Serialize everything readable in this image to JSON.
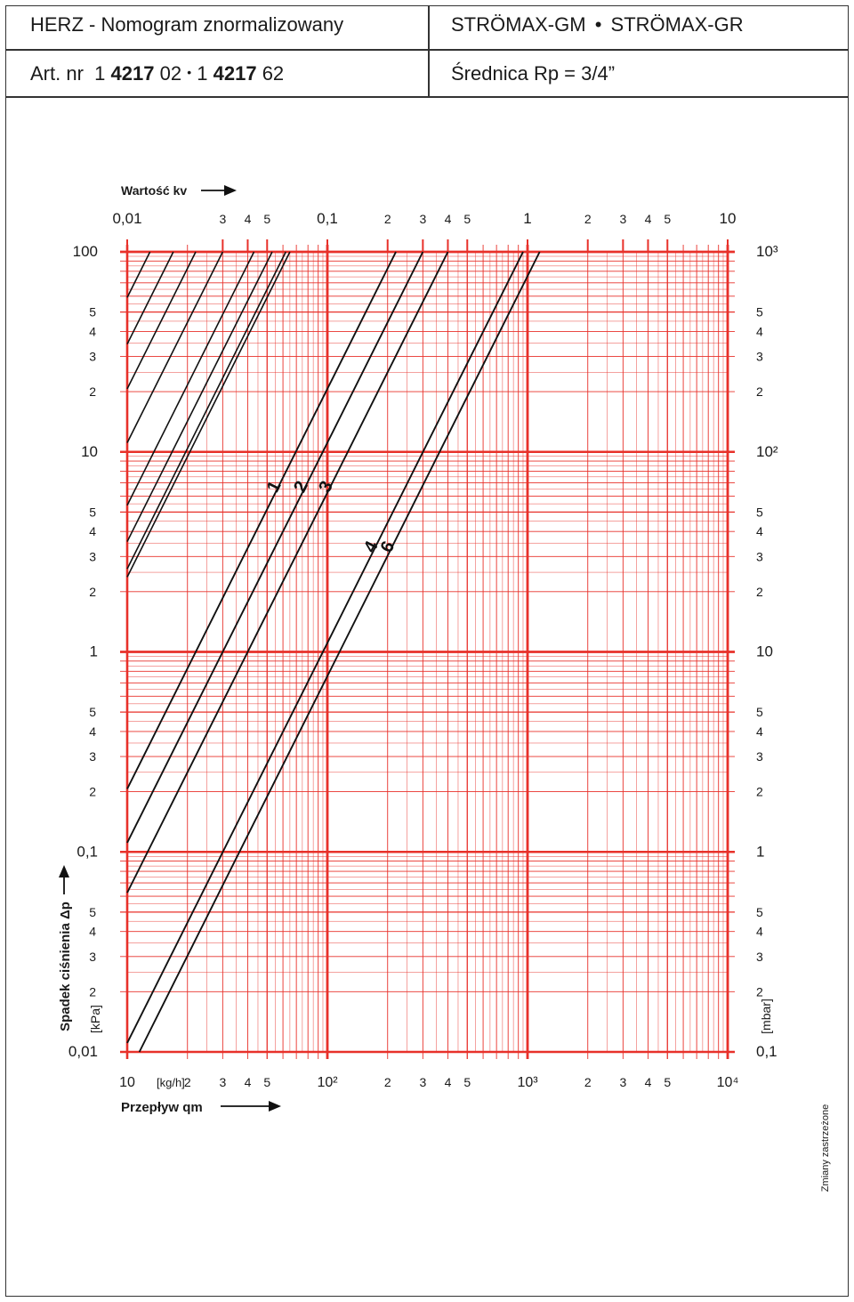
{
  "header": {
    "title": "HERZ - Nomogram znormalizowany",
    "product_left": "STRÖMAX-GM",
    "product_sep": "•",
    "product_right": "STRÖMAX-GR",
    "article_prefix": "Art. nr",
    "article_1a": "1",
    "article_1b": "4217",
    "article_1c": "02",
    "article_sep": "•",
    "article_2a": "1",
    "article_2b": "4217",
    "article_2c": "62",
    "diameter": "Średnica Rp = 3/4”"
  },
  "footer_note": "Zmiany zastrzeżone",
  "colors": {
    "grid": "#e8312a",
    "curve": "#111111",
    "text": "#1a1a1a"
  },
  "chart_data": {
    "type": "line",
    "title": "",
    "xlabel": "Przepływ qm",
    "x_unit": "[kg/h]",
    "ylabel": "Spadek ciśnienia Δp",
    "y_left_unit": "[kPa]",
    "y_right_unit": "[mbar]",
    "top_axis_label": "Wartość kv",
    "x_scale": "log",
    "xlim": [
      10,
      10000
    ],
    "y_scale": "log",
    "ylim": [
      0.01,
      100
    ],
    "kv_scale": "log",
    "kv_lim": [
      0.01,
      10
    ],
    "grid": true,
    "x_tick_labels": [
      {
        "v": 10,
        "t": "10"
      },
      {
        "v": 20,
        "t": "2"
      },
      {
        "v": 30,
        "t": "3"
      },
      {
        "v": 40,
        "t": "4"
      },
      {
        "v": 50,
        "t": "5"
      },
      {
        "v": 100,
        "t": "10²"
      },
      {
        "v": 200,
        "t": "2"
      },
      {
        "v": 300,
        "t": "3"
      },
      {
        "v": 400,
        "t": "4"
      },
      {
        "v": 500,
        "t": "5"
      },
      {
        "v": 1000,
        "t": "10³"
      },
      {
        "v": 2000,
        "t": "2"
      },
      {
        "v": 3000,
        "t": "3"
      },
      {
        "v": 4000,
        "t": "4"
      },
      {
        "v": 5000,
        "t": "5"
      },
      {
        "v": 10000,
        "t": "10⁴"
      }
    ],
    "kv_tick_labels": [
      {
        "v": 0.01,
        "t": "0,01"
      },
      {
        "v": 0.03,
        "t": "3"
      },
      {
        "v": 0.04,
        "t": "4"
      },
      {
        "v": 0.05,
        "t": "5"
      },
      {
        "v": 0.1,
        "t": "0,1"
      },
      {
        "v": 0.2,
        "t": "2"
      },
      {
        "v": 0.3,
        "t": "3"
      },
      {
        "v": 0.4,
        "t": "4"
      },
      {
        "v": 0.5,
        "t": "5"
      },
      {
        "v": 1,
        "t": "1"
      },
      {
        "v": 2,
        "t": "2"
      },
      {
        "v": 3,
        "t": "3"
      },
      {
        "v": 4,
        "t": "4"
      },
      {
        "v": 5,
        "t": "5"
      },
      {
        "v": 10,
        "t": "10"
      }
    ],
    "y_left_tick_labels": [
      {
        "v": 100,
        "t": "100"
      },
      {
        "v": 50,
        "t": "5"
      },
      {
        "v": 40,
        "t": "4"
      },
      {
        "v": 30,
        "t": "3"
      },
      {
        "v": 20,
        "t": "2"
      },
      {
        "v": 10,
        "t": "10"
      },
      {
        "v": 5,
        "t": "5"
      },
      {
        "v": 4,
        "t": "4"
      },
      {
        "v": 3,
        "t": "3"
      },
      {
        "v": 2,
        "t": "2"
      },
      {
        "v": 1,
        "t": "1"
      },
      {
        "v": 0.5,
        "t": "5"
      },
      {
        "v": 0.4,
        "t": "4"
      },
      {
        "v": 0.3,
        "t": "3"
      },
      {
        "v": 0.2,
        "t": "2"
      },
      {
        "v": 0.1,
        "t": "0,1"
      },
      {
        "v": 0.05,
        "t": "5"
      },
      {
        "v": 0.04,
        "t": "4"
      },
      {
        "v": 0.03,
        "t": "3"
      },
      {
        "v": 0.02,
        "t": "2"
      },
      {
        "v": 0.01,
        "t": "0,01"
      }
    ],
    "y_right_tick_labels": [
      {
        "v": 100,
        "t": "10³"
      },
      {
        "v": 50,
        "t": "5"
      },
      {
        "v": 40,
        "t": "4"
      },
      {
        "v": 30,
        "t": "3"
      },
      {
        "v": 20,
        "t": "2"
      },
      {
        "v": 10,
        "t": "10²"
      },
      {
        "v": 5,
        "t": "5"
      },
      {
        "v": 4,
        "t": "4"
      },
      {
        "v": 3,
        "t": "3"
      },
      {
        "v": 2,
        "t": "2"
      },
      {
        "v": 1,
        "t": "10"
      },
      {
        "v": 0.5,
        "t": "5"
      },
      {
        "v": 0.4,
        "t": "4"
      },
      {
        "v": 0.3,
        "t": "3"
      },
      {
        "v": 0.2,
        "t": "2"
      },
      {
        "v": 0.1,
        "t": "1"
      },
      {
        "v": 0.05,
        "t": "5"
      },
      {
        "v": 0.04,
        "t": "4"
      },
      {
        "v": 0.03,
        "t": "3"
      },
      {
        "v": 0.02,
        "t": "2"
      },
      {
        "v": 0.01,
        "t": "0,1"
      }
    ],
    "kv_lines": [
      0.013,
      0.017,
      0.022,
      0.03,
      0.043,
      0.053,
      0.062,
      0.065
    ],
    "series": [
      {
        "name": "1",
        "kv": 0.22
      },
      {
        "name": "2",
        "kv": 0.3
      },
      {
        "name": "3",
        "kv": 0.4
      },
      {
        "name": "4",
        "kv": 0.95
      },
      {
        "name": "6",
        "kv": 1.15
      }
    ]
  }
}
